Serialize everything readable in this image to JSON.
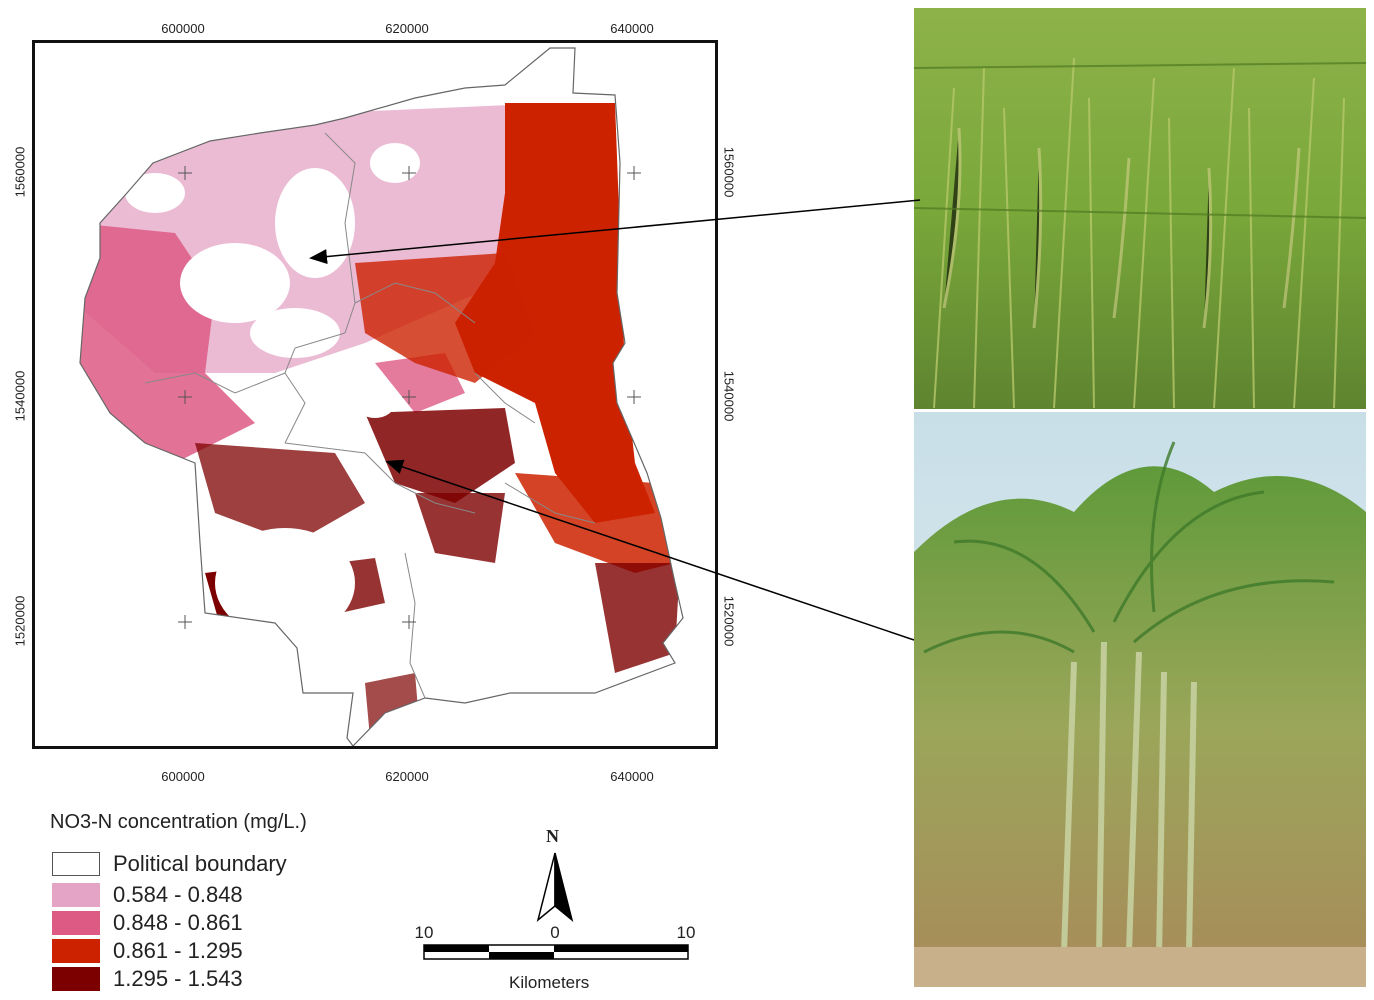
{
  "map": {
    "x_ticks_top": [
      "600000",
      "620000",
      "640000"
    ],
    "x_ticks_bottom": [
      "600000",
      "620000",
      "640000"
    ],
    "y_ticks_left": [
      "1560000",
      "1540000",
      "1520000"
    ],
    "y_ticks_right": [
      "1560000",
      "1540000",
      "1520000"
    ]
  },
  "legend": {
    "title": "NO3-N concentration (mg/L.)",
    "items": [
      {
        "label": "Political boundary",
        "color": "#ffffff"
      },
      {
        "label": "0.584 - 0.848",
        "color": "#e4a4c6"
      },
      {
        "label": "0.848 - 0.861",
        "color": "#dd5a84"
      },
      {
        "label": "0.861 - 1.295",
        "color": "#cc2200"
      },
      {
        "label": "1.295 - 1.543",
        "color": "#7d0000"
      }
    ]
  },
  "north_arrow": {
    "label": "N"
  },
  "scale_bar": {
    "left": "10",
    "center": "0",
    "right": "10",
    "unit": "Kilometers"
  },
  "photos": [
    {
      "subject": "rice-field"
    },
    {
      "subject": "sugarcane-field"
    }
  ]
}
